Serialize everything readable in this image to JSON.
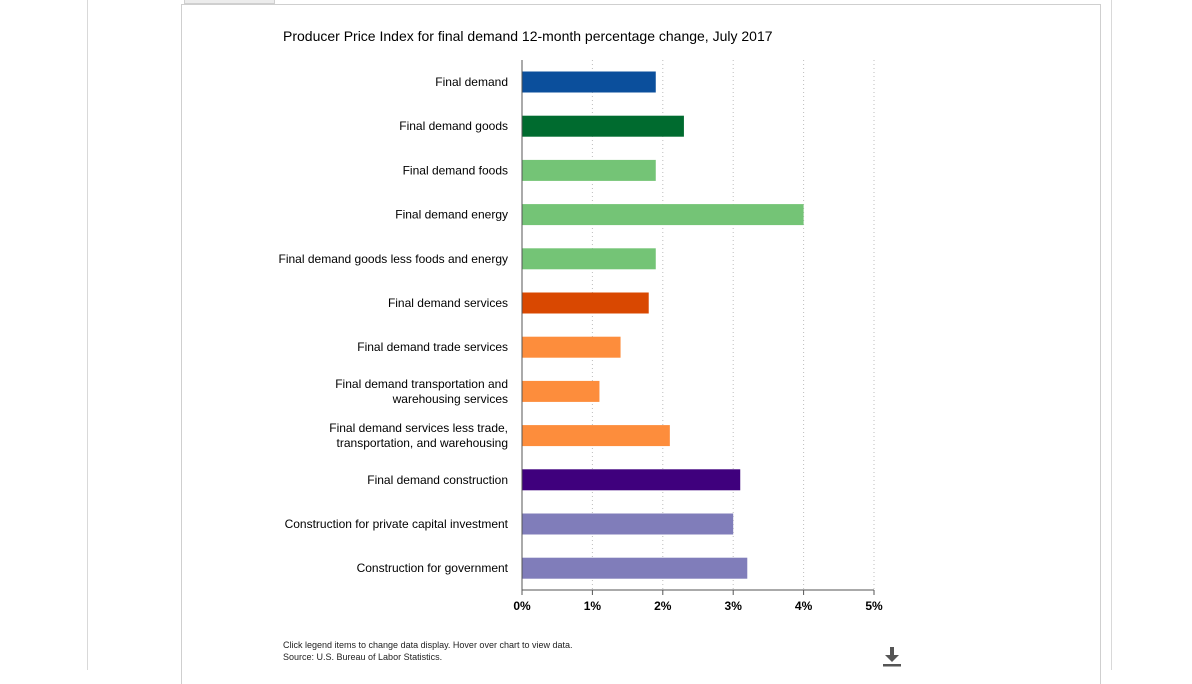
{
  "chart_data": {
    "type": "bar",
    "orientation": "horizontal",
    "title": "Producer Price Index for final demand 12-month percentage change, July 2017",
    "categories": [
      [
        "Final demand"
      ],
      [
        "Final demand goods"
      ],
      [
        "Final demand foods"
      ],
      [
        "Final demand energy"
      ],
      [
        "Final demand goods less foods and energy"
      ],
      [
        "Final demand services"
      ],
      [
        "Final demand trade services"
      ],
      [
        "Final demand transportation and",
        "warehousing services"
      ],
      [
        "Final demand services less trade,",
        "transportation, and warehousing"
      ],
      [
        "Final demand construction"
      ],
      [
        "Construction for private capital investment"
      ],
      [
        "Construction for government"
      ]
    ],
    "values": [
      1.9,
      2.3,
      1.9,
      4.0,
      1.9,
      1.8,
      1.4,
      1.1,
      2.1,
      3.1,
      3.0,
      3.2
    ],
    "colors": [
      "#0b4f9c",
      "#006b2f",
      "#74c476",
      "#74c476",
      "#74c476",
      "#d94801",
      "#fd8d3c",
      "#fd8d3c",
      "#fd8d3c",
      "#3f007d",
      "#807dba",
      "#807dba"
    ],
    "xlim": [
      0,
      5
    ],
    "xticks": [
      0,
      1,
      2,
      3,
      4,
      5
    ],
    "xtick_labels": [
      "0%",
      "1%",
      "2%",
      "3%",
      "4%",
      "5%"
    ],
    "grid": true,
    "xlabel": "",
    "ylabel": ""
  },
  "footnotes": [
    "Click legend items to change data display. Hover over chart to view data.",
    "Source: U.S. Bureau of Labor Statistics."
  ],
  "icons": {
    "download": "download-icon"
  }
}
